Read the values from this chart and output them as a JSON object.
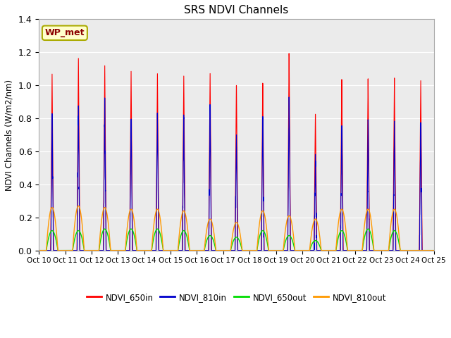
{
  "title": "SRS NDVI Channels",
  "ylabel": "NDVI Channels (W/m2/nm)",
  "annotation": "WP_met",
  "ylim": [
    0.0,
    1.4
  ],
  "plot_bg_color": "#ebebeb",
  "grid_color": "white",
  "colors": {
    "NDVI_650in": "#ff0000",
    "NDVI_810in": "#0000cc",
    "NDVI_650out": "#00dd00",
    "NDVI_810out": "#ff9900"
  },
  "tick_labels": [
    "Oct 10",
    "Oct 11",
    "Oct 12",
    "Oct 13",
    "Oct 14",
    "Oct 15",
    "Oct 16",
    "Oct 17",
    "Oct 18",
    "Oct 19",
    "Oct 20",
    "Oct 21",
    "Oct 22",
    "Oct 23",
    "Oct 24",
    "Oct 25"
  ],
  "n_days": 15,
  "peaks_650in": [
    1.07,
    1.17,
    1.13,
    1.1,
    1.09,
    1.08,
    1.1,
    1.03,
    1.04,
    1.22,
    0.84,
    1.05,
    1.05,
    1.05,
    1.03
  ],
  "peaks_810in": [
    0.83,
    0.9,
    0.87,
    0.85,
    0.84,
    0.84,
    0.88,
    0.7,
    0.81,
    0.96,
    0.55,
    0.8,
    0.81,
    0.79,
    0.79
  ],
  "peaks_650out": [
    0.12,
    0.12,
    0.13,
    0.13,
    0.13,
    0.12,
    0.09,
    0.08,
    0.12,
    0.09,
    0.06,
    0.12,
    0.13,
    0.12,
    0.0
  ],
  "peaks_810out": [
    0.26,
    0.27,
    0.26,
    0.25,
    0.25,
    0.24,
    0.19,
    0.17,
    0.24,
    0.21,
    0.19,
    0.25,
    0.25,
    0.25,
    0.0
  ],
  "figsize": [
    6.4,
    4.8
  ],
  "dpi": 100
}
